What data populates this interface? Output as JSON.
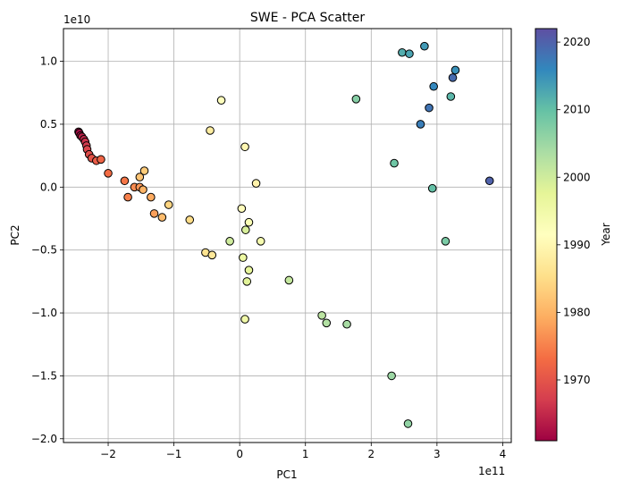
{
  "chart_data": {
    "type": "scatter",
    "title": "SWE - PCA Scatter",
    "xlabel": "PC1",
    "ylabel": "PC2",
    "x_offset_label": "1e11",
    "y_offset_label": "1e10",
    "xlim": [
      -2.68,
      4.13
    ],
    "ylim": [
      -2.03,
      1.26
    ],
    "x_ticks": [
      -2,
      -1,
      0,
      1,
      2,
      3,
      4
    ],
    "y_ticks": [
      -2.0,
      -1.5,
      -1.0,
      -0.5,
      0.0,
      0.5,
      1.0
    ],
    "x_tick_labels": [
      "−2",
      "−1",
      "0",
      "1",
      "2",
      "3",
      "4"
    ],
    "y_tick_labels": [
      "−2.0",
      "−1.5",
      "−1.0",
      "−0.5",
      "0.0",
      "0.5",
      "1.0"
    ],
    "grid": true,
    "colorbar": {
      "label": "Year",
      "colormap": "Spectral",
      "min": 1961,
      "max": 2022,
      "ticks": [
        1970,
        1980,
        1990,
        2000,
        2010,
        2020
      ],
      "tick_labels": [
        "1970",
        "1980",
        "1990",
        "2000",
        "2010",
        "2020"
      ]
    },
    "points": [
      {
        "x": -2.45,
        "y": 0.44,
        "year": 1961
      },
      {
        "x": -2.44,
        "y": 0.43,
        "year": 1962
      },
      {
        "x": -2.42,
        "y": 0.41,
        "year": 1963
      },
      {
        "x": -2.4,
        "y": 0.4,
        "year": 1964
      },
      {
        "x": -2.37,
        "y": 0.38,
        "year": 1965
      },
      {
        "x": -2.35,
        "y": 0.36,
        "year": 1966
      },
      {
        "x": -2.33,
        "y": 0.33,
        "year": 1967
      },
      {
        "x": -2.32,
        "y": 0.3,
        "year": 1968
      },
      {
        "x": -2.29,
        "y": 0.26,
        "year": 1969
      },
      {
        "x": -2.25,
        "y": 0.23,
        "year": 1970
      },
      {
        "x": -2.18,
        "y": 0.21,
        "year": 1971
      },
      {
        "x": -2.11,
        "y": 0.22,
        "year": 1972
      },
      {
        "x": -2.0,
        "y": 0.11,
        "year": 1973
      },
      {
        "x": -1.75,
        "y": 0.05,
        "year": 1974
      },
      {
        "x": -1.7,
        "y": -0.08,
        "year": 1975
      },
      {
        "x": -1.6,
        "y": 0.0,
        "year": 1976
      },
      {
        "x": -1.52,
        "y": 0.0,
        "year": 1977
      },
      {
        "x": -1.3,
        "y": -0.21,
        "year": 1978
      },
      {
        "x": -1.35,
        "y": -0.08,
        "year": 1979
      },
      {
        "x": -1.47,
        "y": -0.02,
        "year": 1980
      },
      {
        "x": -1.18,
        "y": -0.24,
        "year": 1981
      },
      {
        "x": -1.52,
        "y": 0.08,
        "year": 1982
      },
      {
        "x": -1.45,
        "y": 0.13,
        "year": 1983
      },
      {
        "x": -1.08,
        "y": -0.14,
        "year": 1984
      },
      {
        "x": -0.76,
        "y": -0.26,
        "year": 1985
      },
      {
        "x": -0.52,
        "y": -0.52,
        "year": 1986
      },
      {
        "x": -0.42,
        "y": -0.54,
        "year": 1987
      },
      {
        "x": -0.45,
        "y": 0.45,
        "year": 1988
      },
      {
        "x": 0.25,
        "y": 0.03,
        "year": 1989
      },
      {
        "x": 0.08,
        "y": 0.32,
        "year": 1990
      },
      {
        "x": 0.03,
        "y": -0.17,
        "year": 1991
      },
      {
        "x": -0.28,
        "y": 0.69,
        "year": 1992
      },
      {
        "x": 0.14,
        "y": -0.28,
        "year": 1993
      },
      {
        "x": 0.32,
        "y": -0.43,
        "year": 1994
      },
      {
        "x": 0.08,
        "y": -1.05,
        "year": 1995
      },
      {
        "x": 0.05,
        "y": -0.56,
        "year": 1996
      },
      {
        "x": 0.14,
        "y": -0.66,
        "year": 1997
      },
      {
        "x": 0.11,
        "y": -0.75,
        "year": 1998
      },
      {
        "x": 0.09,
        "y": -0.34,
        "year": 1999
      },
      {
        "x": -0.15,
        "y": -0.43,
        "year": 2000
      },
      {
        "x": 0.75,
        "y": -0.74,
        "year": 2001
      },
      {
        "x": 1.25,
        "y": -1.02,
        "year": 2002
      },
      {
        "x": 1.32,
        "y": -1.08,
        "year": 2003
      },
      {
        "x": 1.63,
        "y": -1.09,
        "year": 2004
      },
      {
        "x": 2.31,
        "y": -1.5,
        "year": 2005
      },
      {
        "x": 2.56,
        "y": -1.88,
        "year": 2006
      },
      {
        "x": 1.77,
        "y": 0.7,
        "year": 2007
      },
      {
        "x": 3.13,
        "y": -0.43,
        "year": 2008
      },
      {
        "x": 2.35,
        "y": 0.19,
        "year": 2009
      },
      {
        "x": 2.93,
        "y": -0.01,
        "year": 2010
      },
      {
        "x": 3.21,
        "y": 0.72,
        "year": 2011
      },
      {
        "x": 2.47,
        "y": 1.07,
        "year": 2012
      },
      {
        "x": 2.58,
        "y": 1.06,
        "year": 2013
      },
      {
        "x": 2.81,
        "y": 1.12,
        "year": 2014
      },
      {
        "x": 3.28,
        "y": 0.93,
        "year": 2015
      },
      {
        "x": 2.95,
        "y": 0.8,
        "year": 2016
      },
      {
        "x": 2.75,
        "y": 0.5,
        "year": 2017
      },
      {
        "x": 2.88,
        "y": 0.63,
        "year": 2018
      },
      {
        "x": 3.24,
        "y": 0.87,
        "year": 2019
      },
      {
        "x": 3.8,
        "y": 0.05,
        "year": 2020
      }
    ]
  }
}
